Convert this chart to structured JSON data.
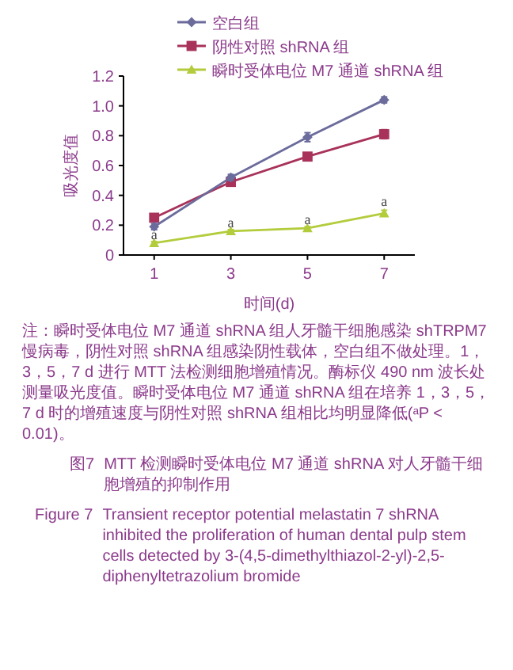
{
  "chart_data": {
    "type": "line",
    "xlabel": "时间(d)",
    "ylabel": "吸光度值",
    "categories": [
      "1",
      "3",
      "5",
      "7"
    ],
    "series": [
      {
        "name": "空白组",
        "color": "#6b6b9c",
        "marker": "diamond",
        "values": [
          0.19,
          0.52,
          0.79,
          1.04
        ],
        "errors": [
          0.02,
          0.02,
          0.03,
          0.02
        ]
      },
      {
        "name": "阴性对照 shRNA 组",
        "color": "#a8325a",
        "marker": "square",
        "values": [
          0.25,
          0.49,
          0.66,
          0.81
        ],
        "errors": [
          0.01,
          0.01,
          0.01,
          0.03
        ]
      },
      {
        "name": "瞬时受体电位 M7 通道  shRNA 组",
        "color": "#b3cc3c",
        "marker": "triangle",
        "values": [
          0.08,
          0.16,
          0.18,
          0.28
        ],
        "errors": [
          0.01,
          0.01,
          0.01,
          0.02
        ]
      }
    ],
    "ylim": [
      0,
      1.2
    ],
    "yticks": [
      0,
      0.2,
      0.4,
      0.6,
      0.8,
      {
        "value": 1,
        "label": "1.0"
      },
      {
        "value": 1.2,
        "label": "1.2"
      }
    ],
    "legend": "top",
    "grid": false,
    "annotations": [
      {
        "text": "a",
        "x": "1",
        "y": 0.14
      },
      {
        "text": "a",
        "x": "3",
        "y": 0.22
      },
      {
        "text": "a",
        "x": "5",
        "y": 0.24
      },
      {
        "text": "a",
        "x": "7",
        "y": 0.36
      },
      "注：瞬时受体电位 M7 通道 shRNA 组人牙髓干细胞感染 shTRPM7 慢病毒，阴性对照 shRNA 组感染阴性载体，空白组不做处理。1，3，5，7 d 进行 MTT 法检测细胞增殖情况。酶标仪 490 nm 波长处测量吸光度值。瞬时受体电位 M7 通道 shRNA 组在培养 1，3，5，7 d 时的增殖速度与阴性对照 shRNA 组相比均明显降低(ᵃP < 0.01)。",
      "图7　MTT 检测瞬时受体电位 M7 通道 shRNA 对人牙髓干细胞增殖的抑制作用",
      "Figure 7　Transient receptor potential melastatin 7 shRNA inhibited the proliferation of human dental pulp stem cells detected by 3-(4,5-dimethylthiazol-2-yl)-2,5-diphenyltetrazolium bromide"
    ]
  }
}
